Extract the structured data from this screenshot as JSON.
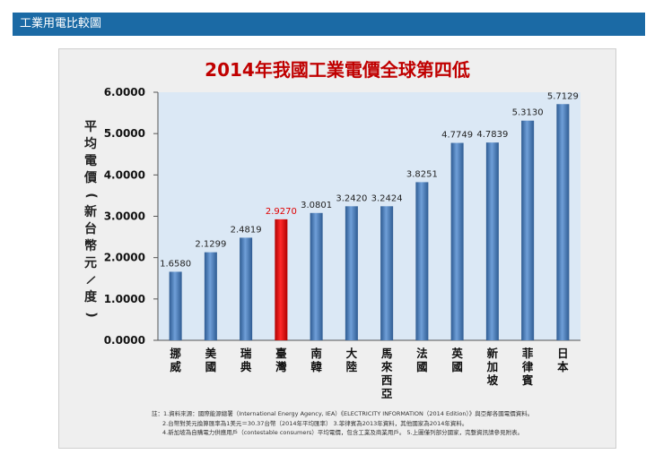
{
  "header": {
    "title": "工業用電比較圖"
  },
  "chart_data": {
    "type": "bar",
    "title": "2014年我國工業電價全球第四低",
    "ylabel": "平均電價(新台幣元/度)",
    "ylim": [
      0,
      6
    ],
    "yticks": [
      "0.0000",
      "1.0000",
      "2.0000",
      "3.0000",
      "4.0000",
      "5.0000",
      "6.0000"
    ],
    "categories": [
      "挪威",
      "美國",
      "瑞典",
      "臺灣",
      "南韓",
      "大陸",
      "馬來西亞",
      "法國",
      "英國",
      "新加坡",
      "菲律賓",
      "日本"
    ],
    "values": [
      1.658,
      2.1299,
      2.4819,
      2.927,
      3.0801,
      3.242,
      3.2424,
      3.8251,
      4.7749,
      4.7839,
      5.313,
      5.7129
    ],
    "value_labels": [
      "1.6580",
      "2.1299",
      "2.4819",
      "2.9270",
      "3.0801",
      "3.2420",
      "3.2424",
      "3.8251",
      "4.7749",
      "4.7839",
      "5.3130",
      "5.7129"
    ],
    "highlight_index": 3,
    "colors": {
      "bar": "#4f81bd",
      "highlight": "#e00000",
      "plot_bg": "#dbe8f5"
    }
  },
  "notes": [
    "註：1.資料來源：國際能源總署（International Energy Agency, IEA）《ELECTRICITY INFORMATION（2014 Edition）》與亞鄰各國電價資料。",
    "2.台幣對美元換算匯率為1美元＝30.37台幣（2014年平均匯率）  3.菲律賓為2013年資料，其他國家為2014年資料。",
    "4.新加坡為自購電力供應用戶（contestable consumers）平均電價，包含工業及商業用戶。  5.上圖僅列部分國家，完整資訊請參見附表。"
  ]
}
